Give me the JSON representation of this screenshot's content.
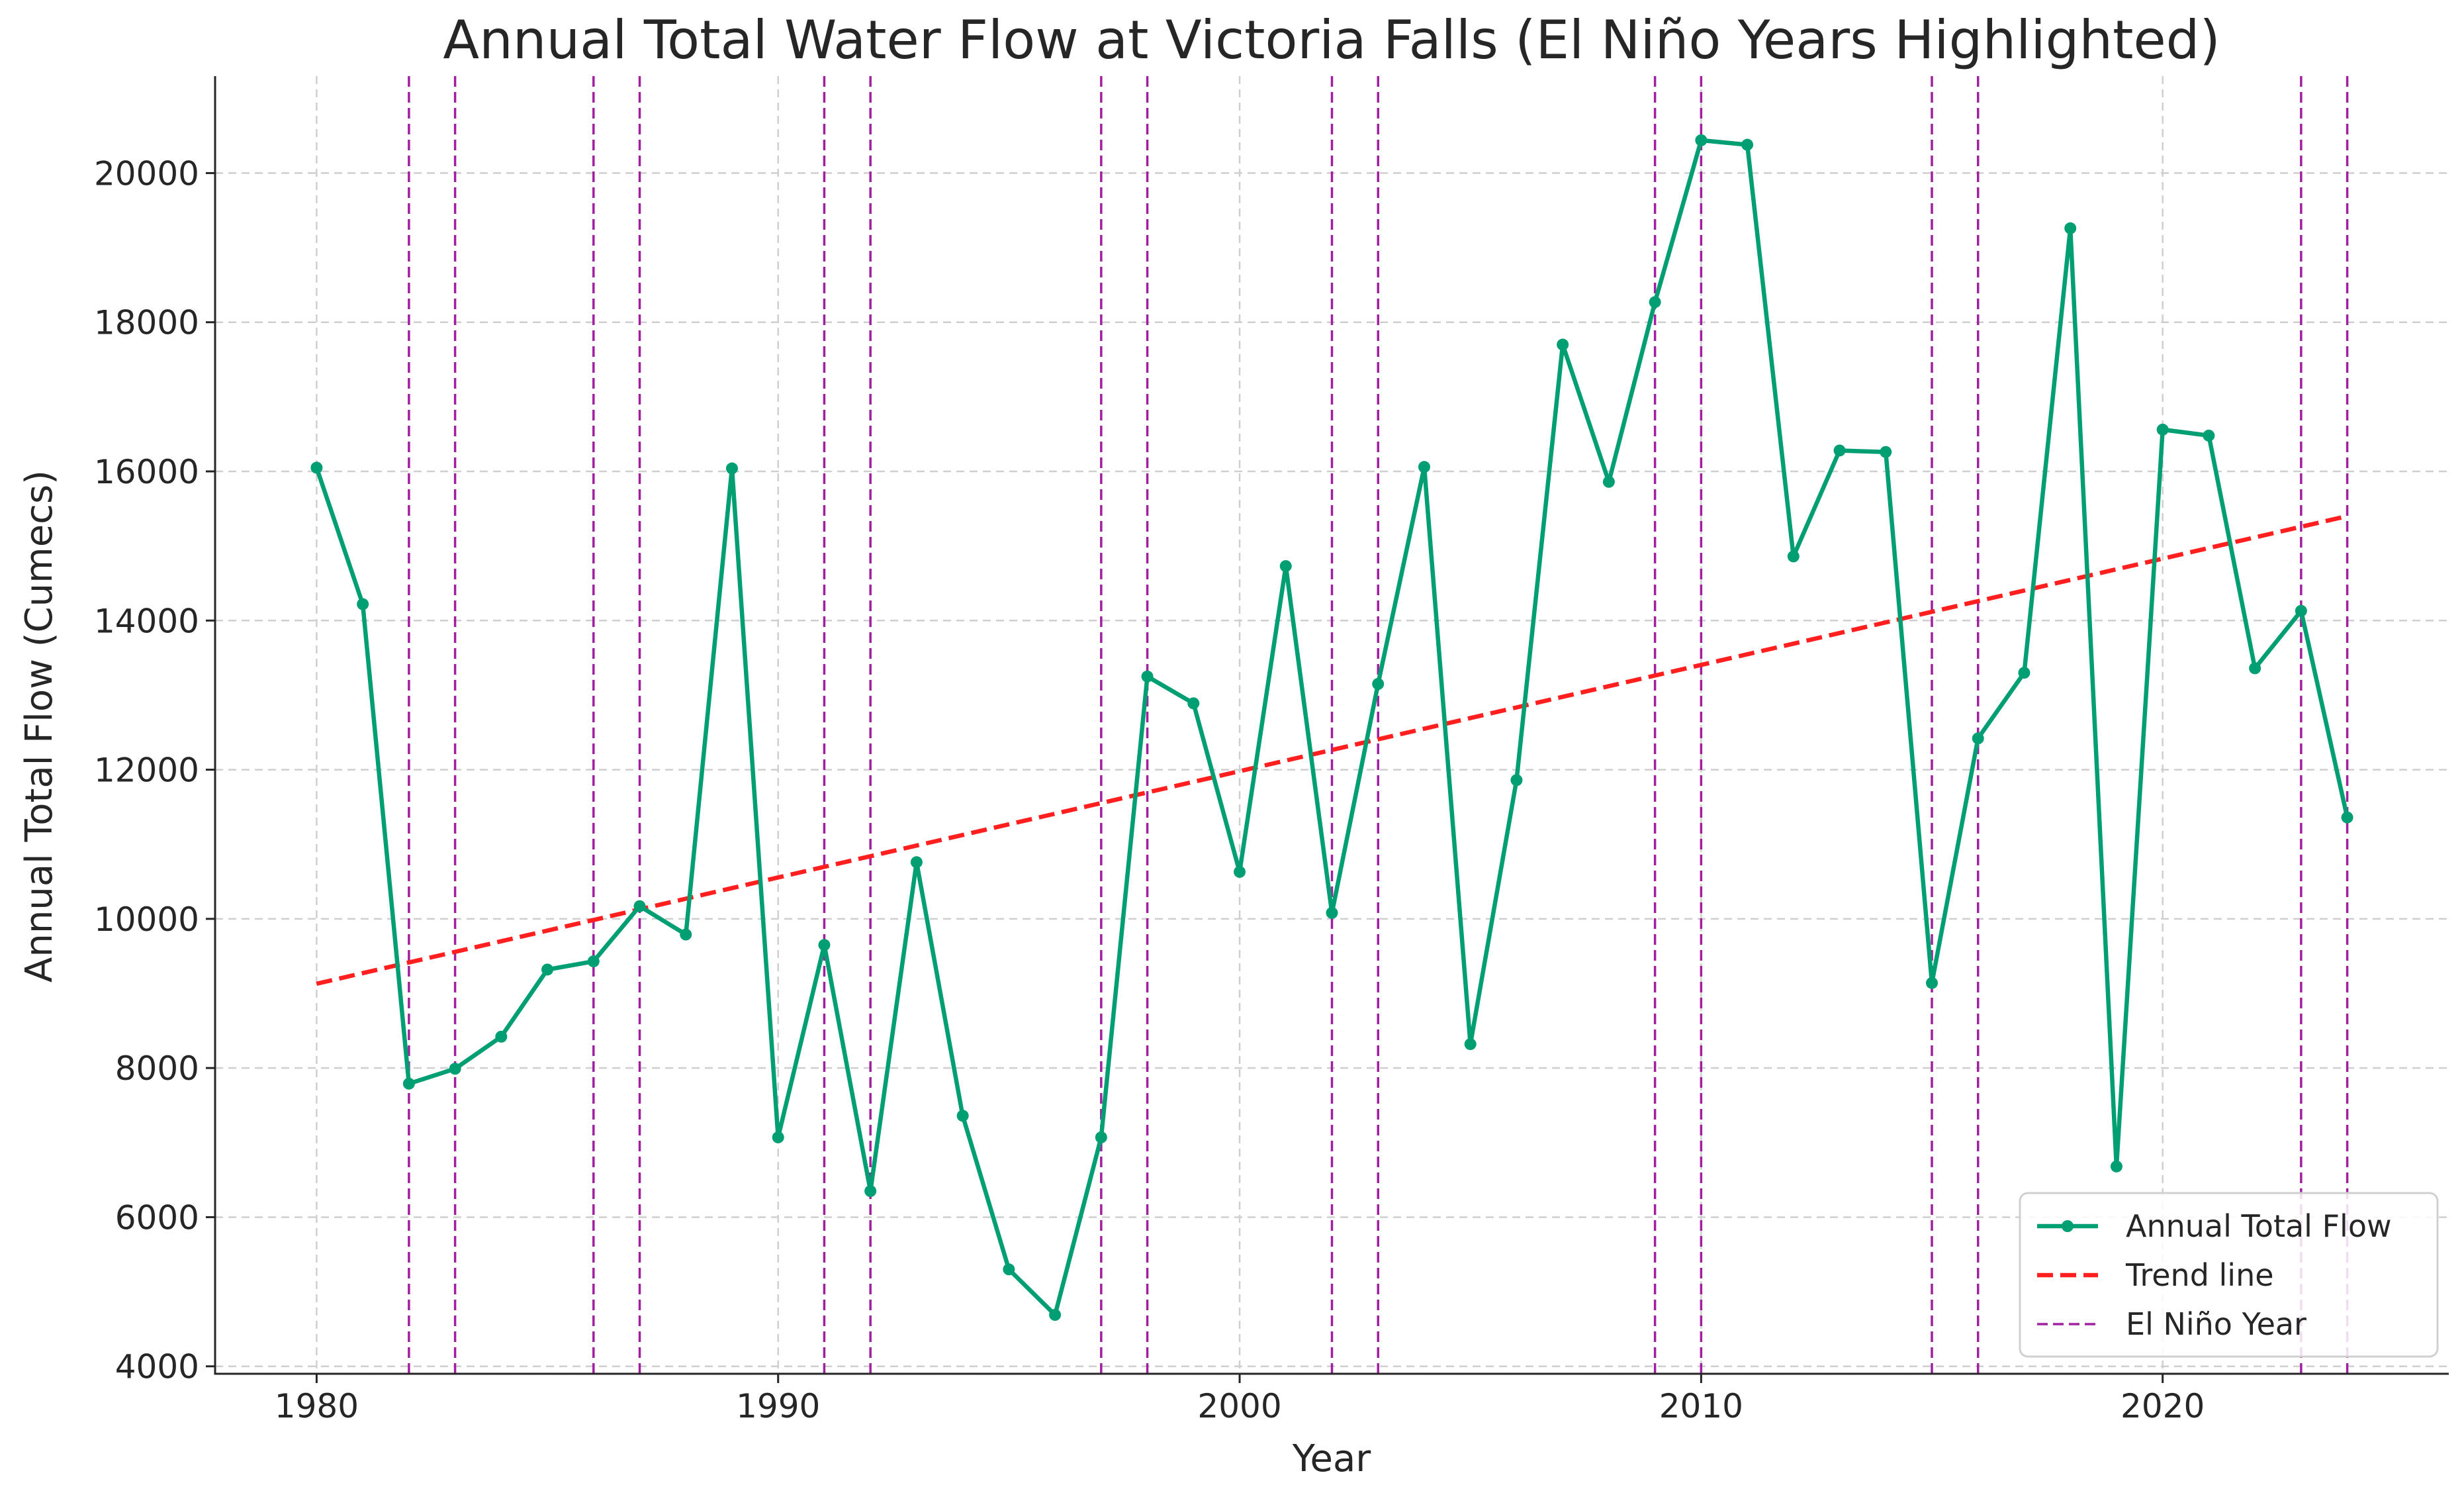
{
  "chart_data": {
    "type": "line",
    "title": "Annual Total Water Flow at Victoria Falls (El Niño Years Highlighted)",
    "xlabel": "Year",
    "ylabel": "Annual Total Flow (Cumecs)",
    "xlim": [
      1977.8,
      2026.2
    ],
    "ylim": [
      3900,
      21300
    ],
    "xticks": [
      1980,
      1990,
      2000,
      2010,
      2020
    ],
    "yticks": [
      4000,
      6000,
      8000,
      10000,
      12000,
      14000,
      16000,
      18000,
      20000
    ],
    "grid": true,
    "legend_position": "lower-right",
    "colors": {
      "flow": "#009e73",
      "trend": "#ff1f1f",
      "elnino": "#a020a0",
      "axis": "#262626"
    },
    "series": [
      {
        "name": "Annual Total Flow",
        "x": [
          1980,
          1981,
          1982,
          1983,
          1984,
          1985,
          1986,
          1987,
          1988,
          1989,
          1990,
          1991,
          1992,
          1993,
          1994,
          1995,
          1996,
          1997,
          1998,
          1999,
          2000,
          2001,
          2002,
          2003,
          2004,
          2005,
          2006,
          2007,
          2008,
          2009,
          2010,
          2011,
          2012,
          2013,
          2014,
          2015,
          2016,
          2017,
          2018,
          2019,
          2020,
          2021,
          2022,
          2023,
          2024
        ],
        "values": [
          16050,
          14220,
          7790,
          7990,
          8420,
          9320,
          9430,
          10170,
          9790,
          16040,
          7070,
          9650,
          6350,
          10760,
          7360,
          5300,
          4690,
          7070,
          13250,
          12890,
          10630,
          14730,
          10080,
          13150,
          16060,
          8320,
          11860,
          17700,
          15860,
          18270,
          20440,
          20380,
          14860,
          16280,
          16260,
          9140,
          12420,
          13300,
          19260,
          6680,
          16560,
          16480,
          13360,
          14130,
          11360
        ]
      },
      {
        "name": "Trend line",
        "x": [
          1980,
          2024
        ],
        "values": [
          9130,
          15400
        ]
      }
    ],
    "elnino_label": "El Niño Year",
    "elnino_years": [
      1982,
      1983,
      1986,
      1987,
      1991,
      1992,
      1997,
      1998,
      2002,
      2003,
      2009,
      2010,
      2015,
      2016,
      2023,
      2024
    ]
  }
}
